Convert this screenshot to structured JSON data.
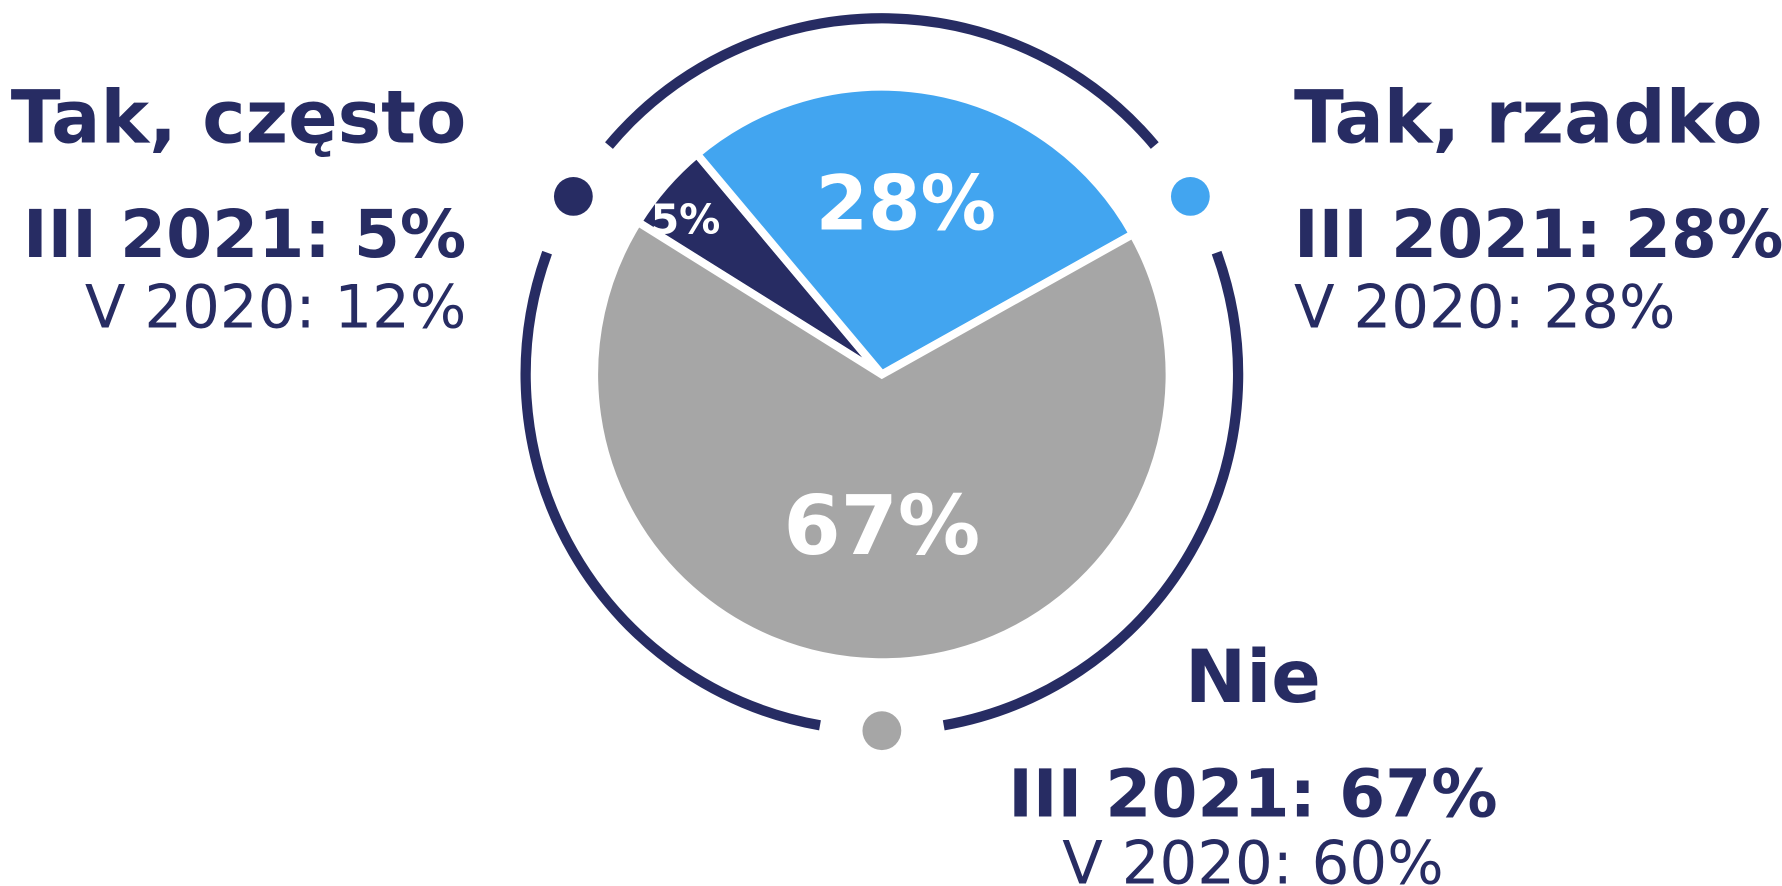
{
  "chart_data": {
    "type": "pie",
    "categories": [
      "Tak, często",
      "Tak, rzadko",
      "Nie"
    ],
    "values": [
      5,
      28,
      67
    ],
    "value_labels": [
      "5%",
      "28%",
      "67%"
    ],
    "colors": [
      "#272c63",
      "#42a5f0",
      "#a6a6a6"
    ],
    "current_labels": [
      "III 2021: 5%",
      "III 2021: 28%",
      "III 2021: 67%"
    ],
    "previous_labels": [
      "V 2020: 12%",
      "V 2020: 28%",
      "V 2020: 60%"
    ]
  }
}
